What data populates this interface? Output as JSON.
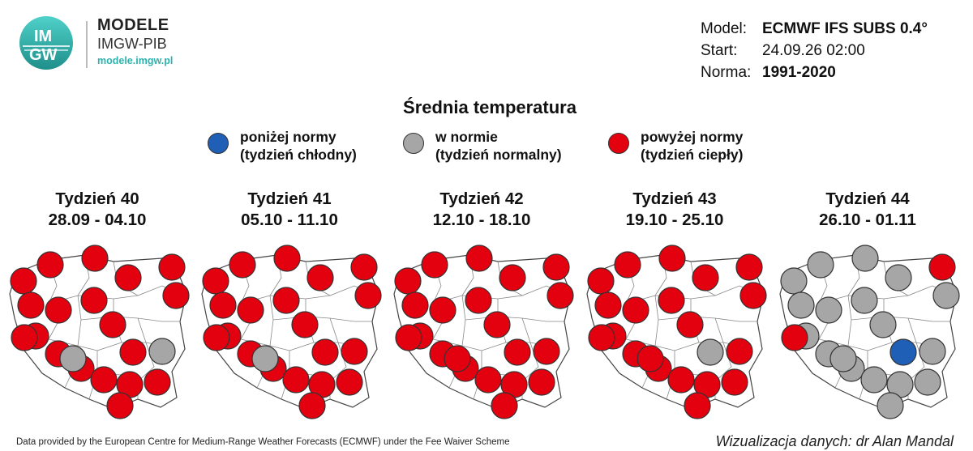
{
  "logo": {
    "badge_text_top": "IM",
    "badge_text_bottom": "GW",
    "line1": "MODELE",
    "line2": "IMGW-PIB",
    "line3": "modele.imgw.pl"
  },
  "model_info": {
    "model_label": "Model:",
    "model_value": "ECMWF IFS SUBS 0.4°",
    "start_label": "Start:",
    "start_value": "24.09.26 02:00",
    "norma_label": "Norma:",
    "norma_value": "1991-2020"
  },
  "title": "Średnia temperatura",
  "legend": [
    {
      "line1": "poniżej normy",
      "line2": "(tydzień chłodny)",
      "color": "#1f5fb5"
    },
    {
      "line1": "w normie",
      "line2": "(tydzień normalny)",
      "color": "#a6a6a6"
    },
    {
      "line1": "powyżej normy",
      "line2": "(tydzień ciepły)",
      "color": "#e3000f"
    }
  ],
  "colors": {
    "below": "#1f5fb5",
    "normal": "#a6a6a6",
    "above": "#e3000f"
  },
  "weeks": [
    {
      "title": "Tydzień 40",
      "dates": "28.09 - 04.10",
      "regions": [
        "above",
        "above",
        "above",
        "above",
        "above",
        "above",
        "above",
        "above",
        "above",
        "above",
        "above",
        "normal",
        "above",
        "above",
        "above",
        "above",
        "above",
        "above",
        "above",
        "above",
        "normal"
      ]
    },
    {
      "title": "Tydzień 41",
      "dates": "05.10 - 11.10",
      "regions": [
        "above",
        "above",
        "above",
        "above",
        "above",
        "above",
        "above",
        "above",
        "above",
        "above",
        "above",
        "above",
        "above",
        "above",
        "above",
        "above",
        "above",
        "above",
        "above",
        "above",
        "normal"
      ]
    },
    {
      "title": "Tydzień 42",
      "dates": "12.10 - 18.10",
      "regions": [
        "above",
        "above",
        "above",
        "above",
        "above",
        "above",
        "above",
        "above",
        "above",
        "above",
        "above",
        "above",
        "above",
        "above",
        "above",
        "above",
        "above",
        "above",
        "above",
        "above",
        "above"
      ]
    },
    {
      "title": "Tydzień 43",
      "dates": "19.10 - 25.10",
      "regions": [
        "above",
        "above",
        "above",
        "above",
        "above",
        "above",
        "above",
        "above",
        "above",
        "above",
        "above",
        "above",
        "normal",
        "above",
        "above",
        "above",
        "above",
        "above",
        "above",
        "above",
        "above"
      ]
    },
    {
      "title": "Tydzień 44",
      "dates": "26.10 - 01.11",
      "regions": [
        "normal",
        "normal",
        "above",
        "normal",
        "normal",
        "normal",
        "normal",
        "normal",
        "normal",
        "normal",
        "normal",
        "normal",
        "below",
        "normal",
        "normal",
        "normal",
        "normal",
        "normal",
        "normal",
        "above",
        "normal"
      ]
    }
  ],
  "footer": {
    "source": "Data provided by the European Centre for Medium-Range Weather Forecasts (ECMWF) under the Fee Waiver Scheme",
    "credit": "Wizualizacja danych: dr Alan Mandal"
  }
}
